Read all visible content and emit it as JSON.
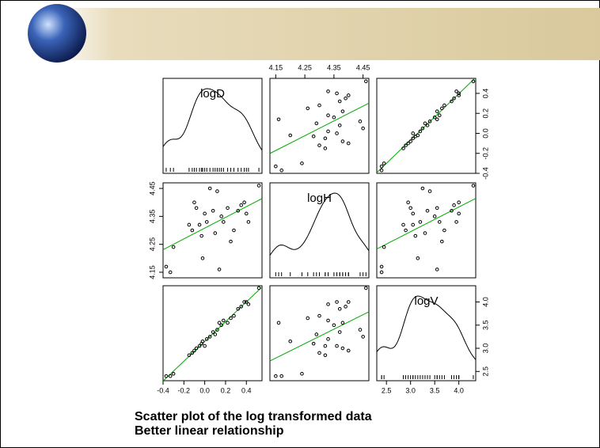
{
  "slide": {
    "caption": [
      "Scatter plot of the log transformed data",
      "Better linear relationship"
    ]
  },
  "chart_data": {
    "type": "scatter-matrix",
    "point_color": "#000000",
    "fit_color": "#00aa00",
    "variables": [
      {
        "name": "logD",
        "lim": [
          -0.4,
          0.55
        ],
        "ticks": [
          -0.4,
          -0.2,
          {
            "value": 0,
            "label": "0.0"
          },
          0.2,
          0.4
        ],
        "values": [
          -0.37,
          -0.33,
          -0.3,
          -0.15,
          -0.12,
          -0.1,
          -0.08,
          -0.05,
          -0.03,
          -0.02,
          0,
          0.02,
          0.05,
          0.08,
          0.1,
          0.12,
          0.14,
          0.16,
          0.18,
          0.22,
          0.25,
          0.28,
          0.32,
          0.35,
          0.38,
          0.4,
          0.42,
          0.52
        ]
      },
      {
        "name": "logH",
        "lim": [
          4.13,
          4.47
        ],
        "ticks": [
          4.15,
          4.25,
          4.35,
          4.45
        ],
        "values": [
          4.17,
          4.15,
          4.24,
          4.32,
          4.3,
          4.4,
          4.38,
          4.32,
          4.28,
          4.2,
          4.36,
          4.33,
          4.45,
          4.37,
          4.29,
          4.44,
          4.16,
          4.35,
          4.33,
          4.38,
          4.26,
          4.3,
          4.37,
          4.39,
          4.4,
          4.36,
          4.33,
          4.46
        ]
      },
      {
        "name": "logV",
        "lim": [
          2.3,
          4.35
        ],
        "ticks": [
          2.5,
          {
            "value": 3,
            "label": "3.0"
          },
          3.5,
          {
            "value": 4,
            "label": "4.0"
          }
        ],
        "values": [
          2.4,
          2.4,
          2.45,
          2.85,
          2.9,
          2.95,
          3,
          3.05,
          3.1,
          3.15,
          3.05,
          3.2,
          3.25,
          3.35,
          3.3,
          3.4,
          3.55,
          3.5,
          3.6,
          3.55,
          3.65,
          3.7,
          3.85,
          3.9,
          4,
          4,
          3.95,
          4.3
        ]
      }
    ]
  }
}
